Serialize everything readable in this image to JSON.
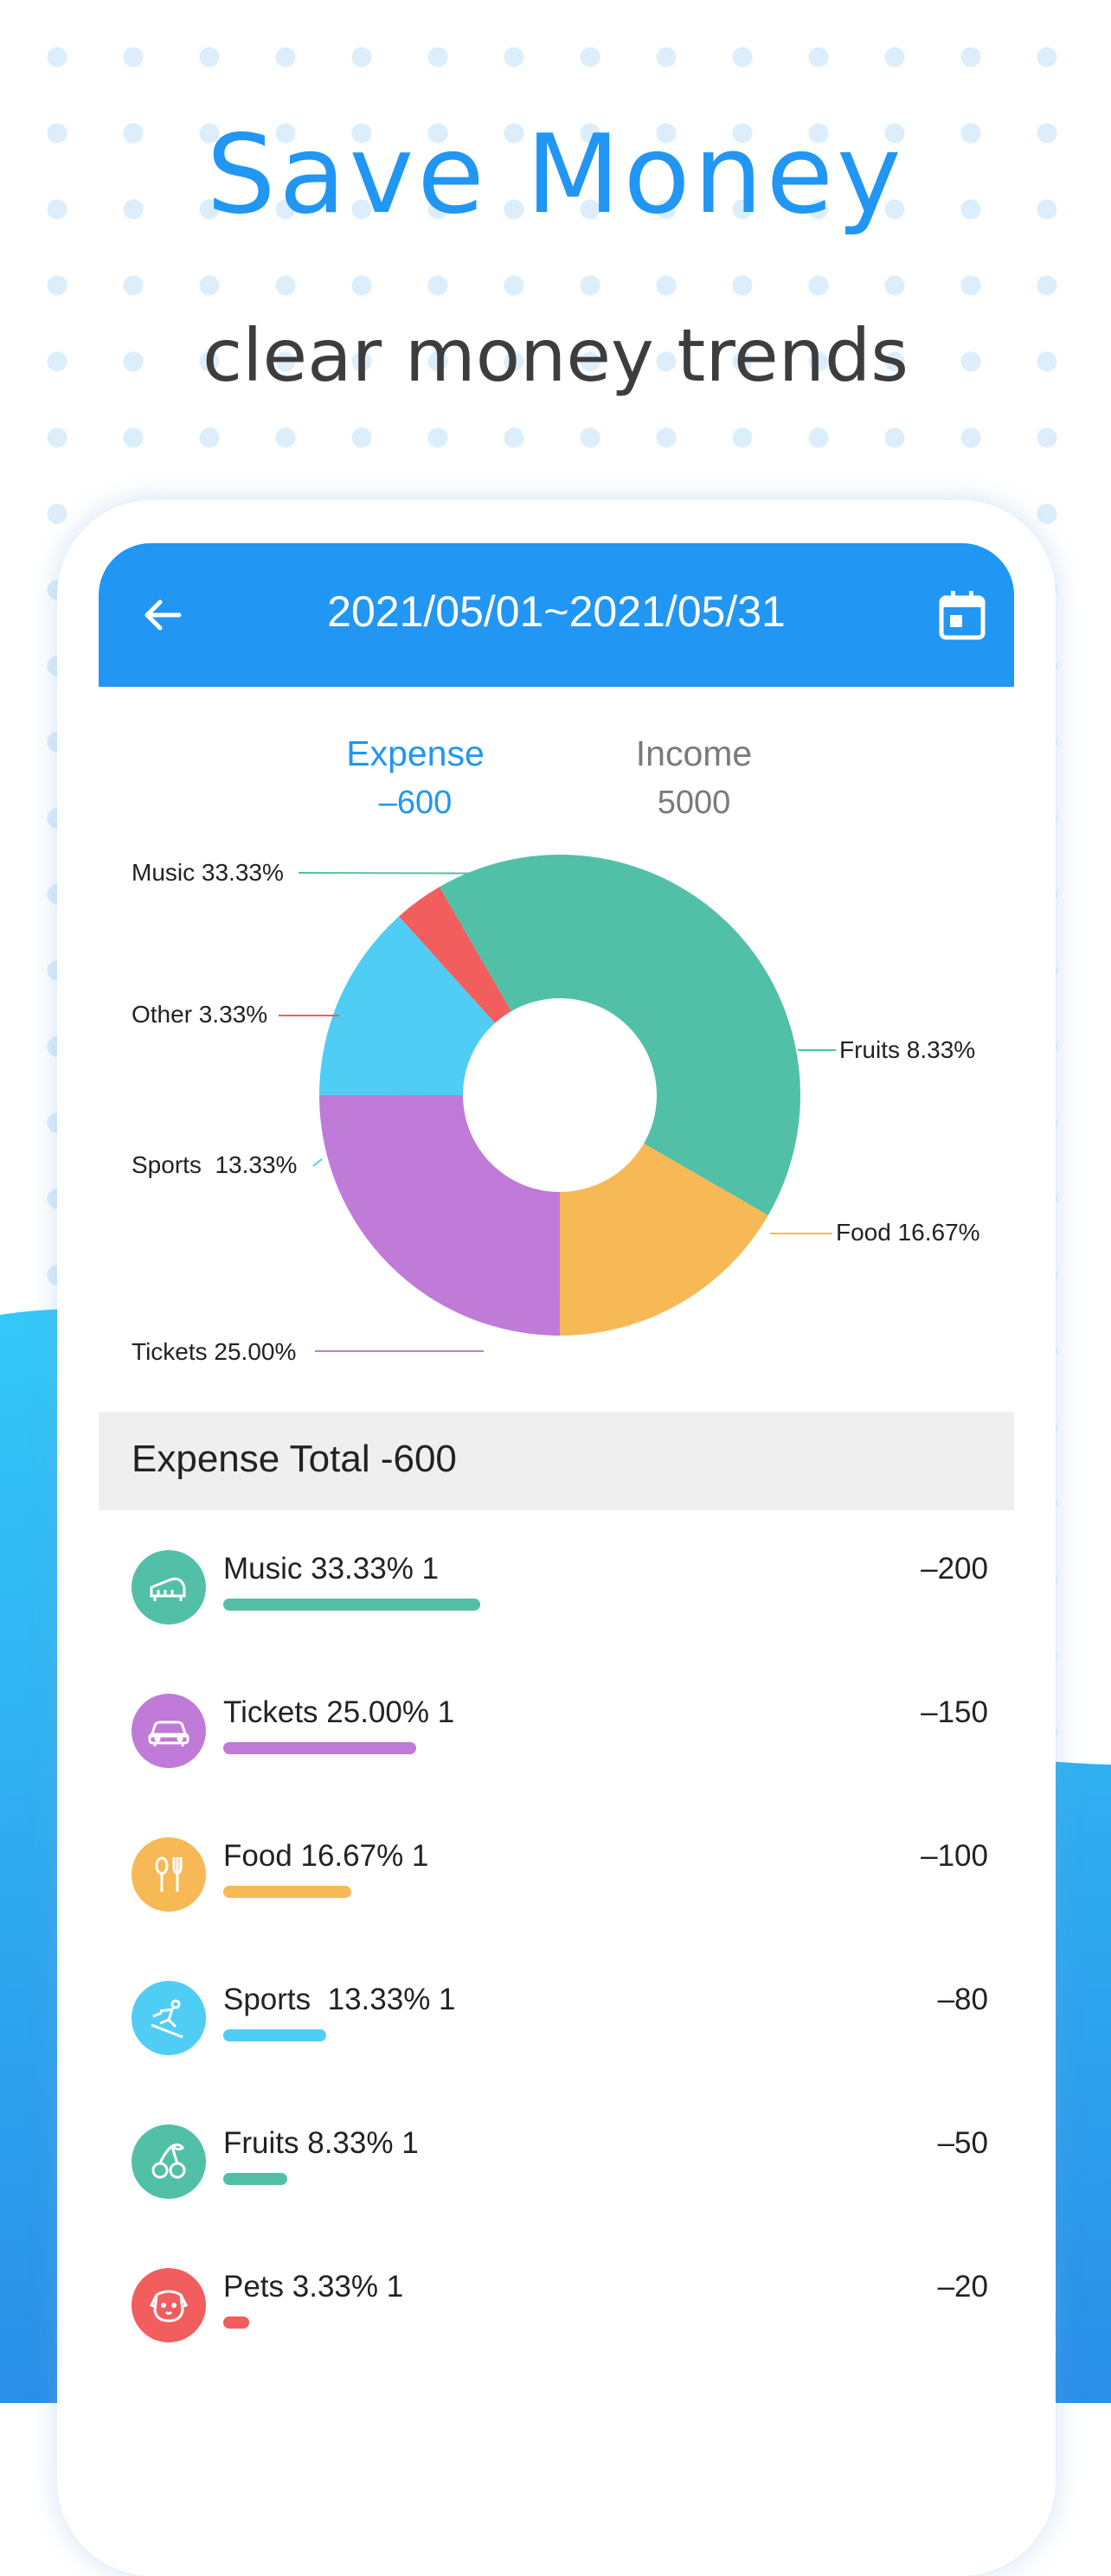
{
  "headline": "Save Money",
  "subhead": "clear money trends",
  "header": {
    "date_range": "2021/05/01~2021/05/31"
  },
  "tabs": [
    {
      "label": "Expense",
      "value": "–600",
      "active": true
    },
    {
      "label": "Income",
      "value": "5000",
      "active": false
    }
  ],
  "colors": {
    "accent": "#2196f3",
    "music": "#52c0a6",
    "tickets": "#c07ad8",
    "food": "#f7b955",
    "sports": "#50cdf4",
    "fruits": "#52c0a6",
    "other": "#f25d5d"
  },
  "chart_data": {
    "type": "pie",
    "donut": true,
    "slices": [
      {
        "name": "Fruits",
        "percent": 8.33,
        "label": "Fruits 8.33%",
        "color": "#52c0a6"
      },
      {
        "name": "Food",
        "percent": 16.67,
        "label": "Food 16.67%",
        "color": "#f7b955"
      },
      {
        "name": "Tickets",
        "percent": 25.0,
        "label": "Tickets 25.00%",
        "color": "#c07ad8"
      },
      {
        "name": "Sports",
        "percent": 13.33,
        "label": "Sports  13.33%",
        "color": "#50cdf4"
      },
      {
        "name": "Other",
        "percent": 3.33,
        "label": "Other 3.33%",
        "color": "#f25d5d"
      },
      {
        "name": "Music",
        "percent": 33.33,
        "label": "Music 33.33%",
        "color": "#52c0a6"
      }
    ]
  },
  "summary": {
    "total_label": "Expense Total -600"
  },
  "categories": [
    {
      "label": "Music 33.33% 1",
      "amount": "–200",
      "share": 0.3333,
      "color": "#52c0a6",
      "icon": "piano-icon"
    },
    {
      "label": "Tickets 25.00% 1",
      "amount": "–150",
      "share": 0.25,
      "color": "#c07ad8",
      "icon": "car-icon"
    },
    {
      "label": "Food 16.67% 1",
      "amount": "–100",
      "share": 0.1667,
      "color": "#f7b955",
      "icon": "utensils-icon"
    },
    {
      "label": "Sports  13.33% 1",
      "amount": "–80",
      "share": 0.1333,
      "color": "#50cdf4",
      "icon": "skier-icon"
    },
    {
      "label": "Fruits 8.33% 1",
      "amount": "–50",
      "share": 0.0833,
      "color": "#52c0a6",
      "icon": "cherry-icon"
    },
    {
      "label": "Pets 3.33% 1",
      "amount": "–20",
      "share": 0.0333,
      "color": "#f25d5d",
      "icon": "dog-icon"
    }
  ]
}
